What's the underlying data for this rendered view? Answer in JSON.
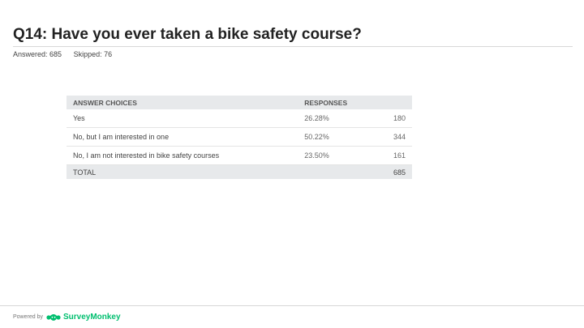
{
  "question": {
    "title": "Q14: Have you ever taken a bike safety course?",
    "answered": "Answered: 685",
    "skipped": "Skipped: 76"
  },
  "table": {
    "headers": {
      "choice": "ANSWER CHOICES",
      "responses": "RESPONSES"
    },
    "rows": [
      {
        "choice": "Yes",
        "percent": "26.28%",
        "count": "180"
      },
      {
        "choice": "No, but I am interested in one",
        "percent": "50.22%",
        "count": "344"
      },
      {
        "choice": "No, I am not interested in bike safety courses",
        "percent": "23.50%",
        "count": "161"
      }
    ],
    "total": {
      "label": "TOTAL",
      "count": "685"
    }
  },
  "footer": {
    "powered_by": "Powered by",
    "brand": "SurveyMonkey",
    "brand_color": "#00bf6f",
    "logo_icon": "surveymonkey-logo-icon"
  }
}
